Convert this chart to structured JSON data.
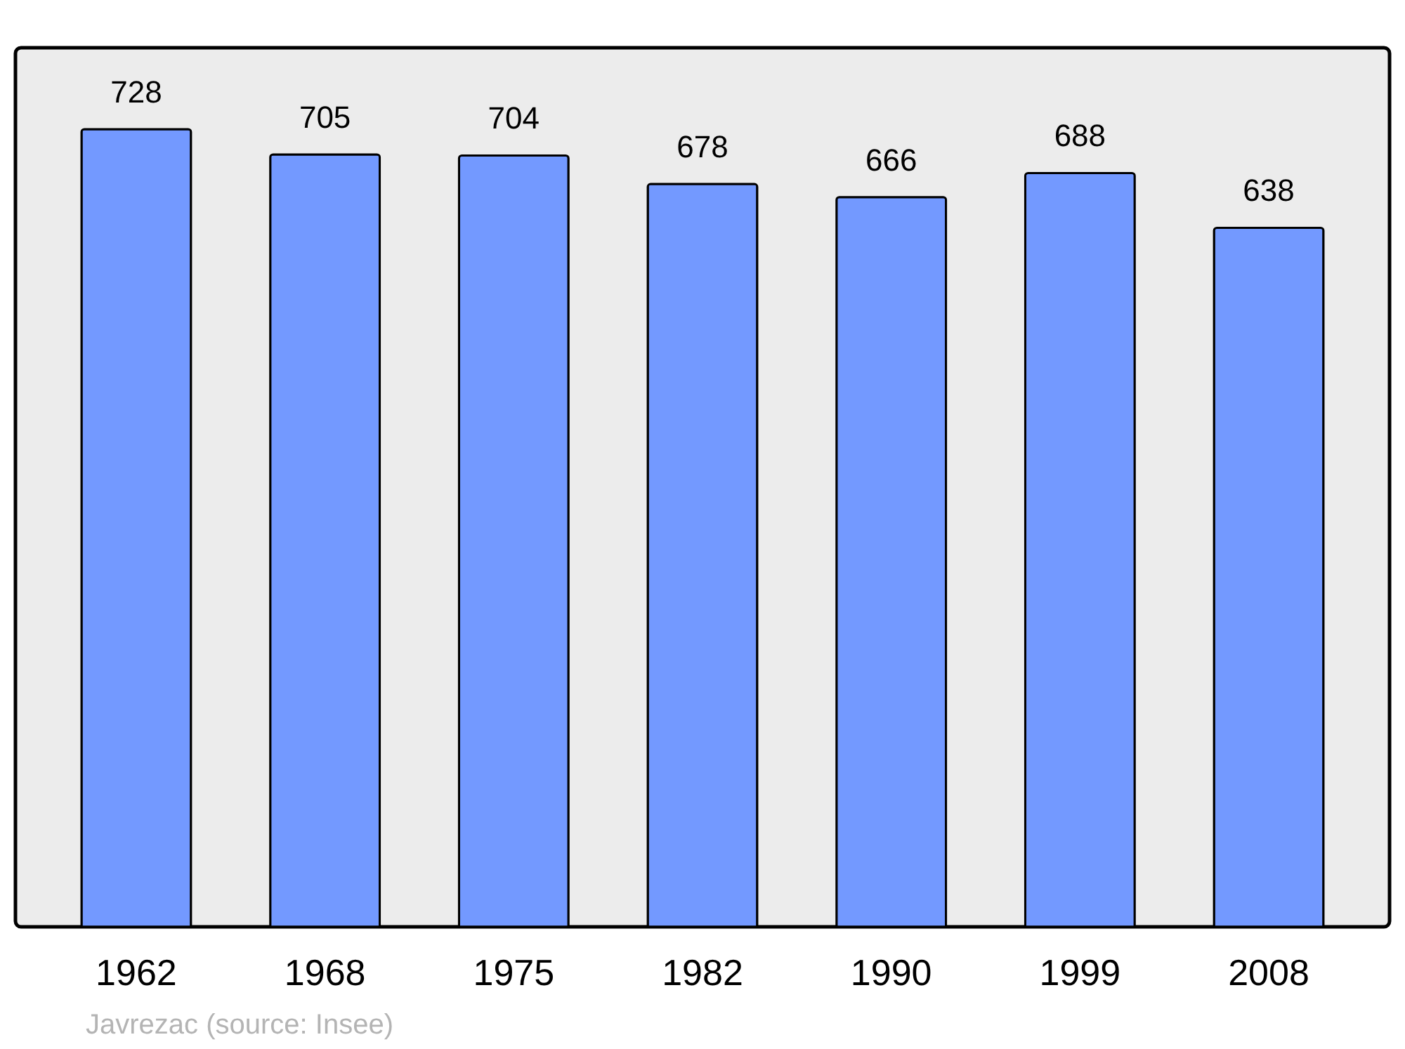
{
  "chart_data": {
    "type": "bar",
    "categories": [
      "1962",
      "1968",
      "1975",
      "1982",
      "1990",
      "1999",
      "2008"
    ],
    "values": [
      728,
      705,
      704,
      678,
      666,
      688,
      638
    ],
    "color": "#7399ff",
    "data_labels": true,
    "annotations": [
      "Javrezac    (source: Insee)"
    ]
  }
}
